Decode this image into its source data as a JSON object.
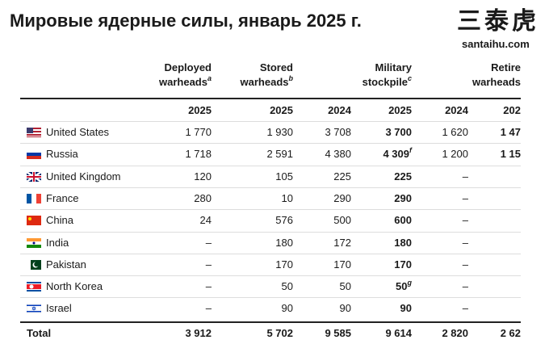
{
  "header": {
    "title": "Мировые ядерные силы, январь 2025 г.",
    "logo": {
      "mark": "三泰虎",
      "site": "santaihu.com"
    }
  },
  "table": {
    "columns": [
      {
        "lines": [
          "Deployed",
          "warheads"
        ],
        "note": "a"
      },
      {
        "lines": [
          "Stored",
          "warheads"
        ],
        "note": "b"
      },
      {
        "lines": [
          "Military",
          "stockpile"
        ],
        "note": "c"
      },
      {
        "lines": [
          "Retire",
          "warheads"
        ]
      }
    ],
    "years": [
      "2025",
      "2025",
      "2024",
      "2025",
      "2024",
      "202"
    ],
    "rows": [
      {
        "country": "United States",
        "cells": [
          "1 770",
          "1 930",
          "3 708",
          "3 700",
          "1 620",
          "1 47"
        ]
      },
      {
        "country": "Russia",
        "cells": [
          "1 718",
          "2 591",
          "4 380",
          "4 309",
          "1 200",
          "1 15"
        ],
        "stockpile_note": "f"
      },
      {
        "country": "United Kingdom",
        "cells": [
          "120",
          "105",
          "225",
          "225",
          "–",
          ""
        ]
      },
      {
        "country": "France",
        "cells": [
          "280",
          "10",
          "290",
          "290",
          "–",
          ""
        ]
      },
      {
        "country": "China",
        "cells": [
          "24",
          "576",
          "500",
          "600",
          "–",
          ""
        ]
      },
      {
        "country": "India",
        "cells": [
          "–",
          "180",
          "172",
          "180",
          "–",
          ""
        ]
      },
      {
        "country": "Pakistan",
        "cells": [
          "–",
          "170",
          "170",
          "170",
          "–",
          ""
        ]
      },
      {
        "country": "North Korea",
        "cells": [
          "–",
          "50",
          "50",
          "50",
          "–",
          ""
        ],
        "stockpile_note": "g"
      },
      {
        "country": "Israel",
        "cells": [
          "–",
          "90",
          "90",
          "90",
          "–",
          ""
        ]
      }
    ],
    "total": {
      "label": "Total",
      "cells": [
        "3 912",
        "5 702",
        "9 585",
        "9 614",
        "2 820",
        "2 62"
      ]
    }
  }
}
